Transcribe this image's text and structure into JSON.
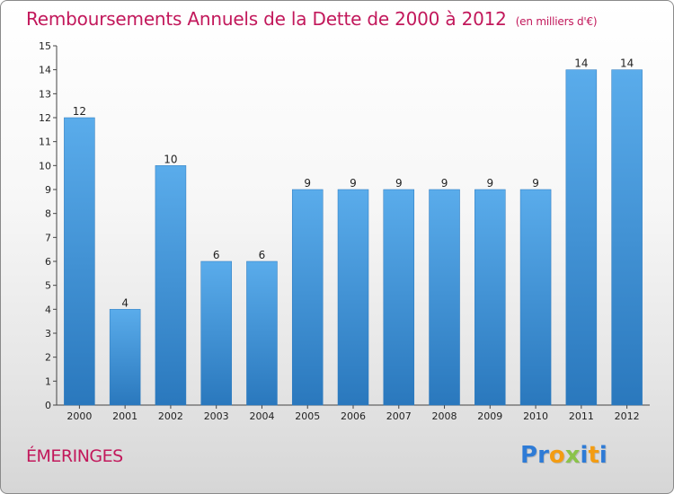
{
  "chart_data": {
    "type": "bar",
    "title": "Remboursements Annuels de la Dette de 2000 à 2012",
    "subtitle": "(en milliers d'€)",
    "categories": [
      "2000",
      "2001",
      "2002",
      "2003",
      "2004",
      "2005",
      "2006",
      "2007",
      "2008",
      "2009",
      "2010",
      "2011",
      "2012"
    ],
    "values": [
      12,
      4,
      10,
      6,
      6,
      9,
      9,
      9,
      9,
      9,
      9,
      14,
      14
    ],
    "ylim": [
      0,
      15
    ],
    "yticks": [
      0,
      1,
      2,
      3,
      4,
      5,
      6,
      7,
      8,
      9,
      10,
      11,
      12,
      13,
      14,
      15
    ],
    "xlabel": "",
    "ylabel": "",
    "grid": false,
    "bar_color": "#3d8fd6"
  },
  "footer": {
    "commune": "ÉMERINGES",
    "logo_letters": [
      {
        "ch": "P",
        "color": "#2e7bd6"
      },
      {
        "ch": "r",
        "color": "#2e7bd6"
      },
      {
        "ch": "o",
        "color": "#f39c12"
      },
      {
        "ch": "x",
        "color": "#8bc34a"
      },
      {
        "ch": "i",
        "color": "#2e7bd6"
      },
      {
        "ch": "t",
        "color": "#f39c12"
      },
      {
        "ch": "i",
        "color": "#2e7bd6"
      }
    ]
  }
}
